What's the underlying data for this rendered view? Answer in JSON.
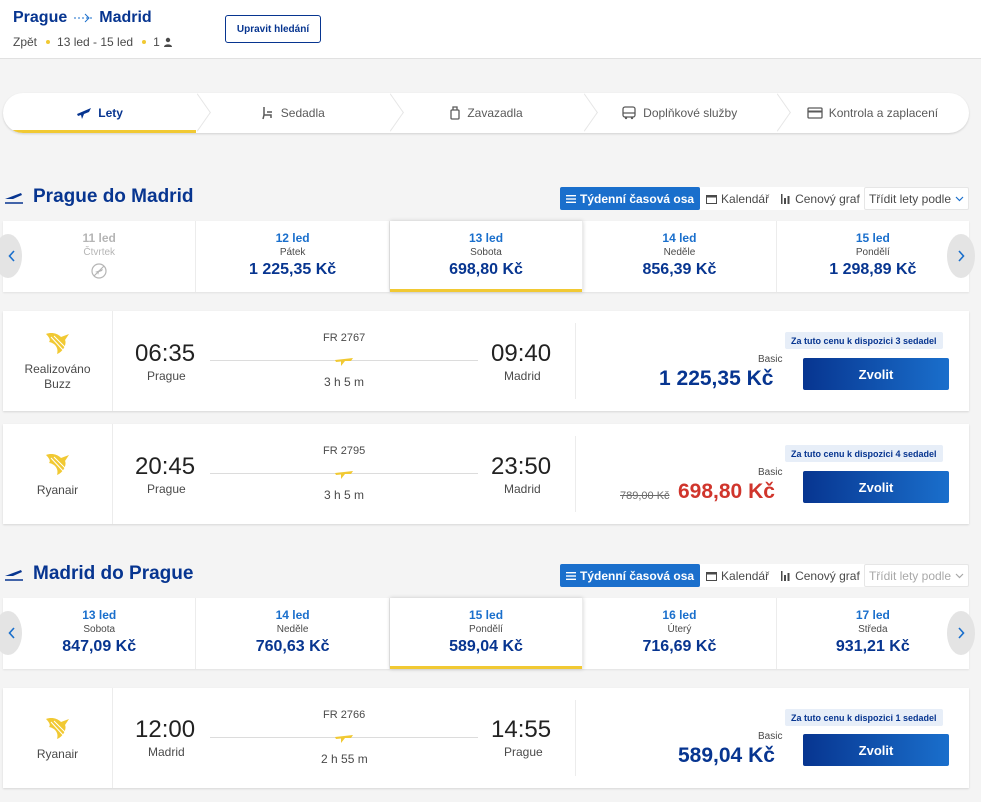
{
  "header": {
    "origin": "Prague",
    "destination": "Madrid",
    "trip_type": "Zpět",
    "dates": "13 led - 15 led",
    "passengers": "1",
    "edit_label": "Upravit hledání"
  },
  "steps": [
    {
      "label": "Lety",
      "icon": "plane-icon"
    },
    {
      "label": "Sedadla",
      "icon": "seat-icon"
    },
    {
      "label": "Zavazadla",
      "icon": "luggage-icon"
    },
    {
      "label": "Doplňkové služby",
      "icon": "bus-icon"
    },
    {
      "label": "Kontrola a zaplacení",
      "icon": "card-icon"
    }
  ],
  "view_tabs": {
    "timeline": "Týdenní časová osa",
    "calendar": "Kalendář",
    "price_chart": "Cenový graf",
    "sort": "Třídit lety podle"
  },
  "outbound": {
    "title": "Prague do Madrid",
    "days": [
      {
        "date": "11 led",
        "weekday": "Čtvrtek",
        "price": "",
        "disabled": true
      },
      {
        "date": "12 led",
        "weekday": "Pátek",
        "price": "1 225,35 Kč"
      },
      {
        "date": "13 led",
        "weekday": "Sobota",
        "price": "698,80 Kč",
        "selected": true
      },
      {
        "date": "14 led",
        "weekday": "Neděle",
        "price": "856,39 Kč"
      },
      {
        "date": "15 led",
        "weekday": "Pondělí",
        "price": "1 298,89 Kč"
      }
    ],
    "flights": [
      {
        "carrier": "Realizováno Buzz",
        "dep_time": "06:35",
        "dep_city": "Prague",
        "arr_time": "09:40",
        "arr_city": "Madrid",
        "flight_no": "FR 2767",
        "duration": "3 h 5 m",
        "availability": "Za tuto cenu k dispozici 3 sedadel",
        "fare": "Basic",
        "old_price": "",
        "price": "1 225,35 Kč",
        "select_label": "Zvolit"
      },
      {
        "carrier": "Ryanair",
        "dep_time": "20:45",
        "dep_city": "Prague",
        "arr_time": "23:50",
        "arr_city": "Madrid",
        "flight_no": "FR 2795",
        "duration": "3 h 5 m",
        "availability": "Za tuto cenu k dispozici 4 sedadel",
        "fare": "Basic",
        "old_price": "789,00 Kč",
        "price": "698,80 Kč",
        "select_label": "Zvolit"
      }
    ]
  },
  "inbound": {
    "title": "Madrid do Prague",
    "days": [
      {
        "date": "13 led",
        "weekday": "Sobota",
        "price": "847,09 Kč"
      },
      {
        "date": "14 led",
        "weekday": "Neděle",
        "price": "760,63 Kč"
      },
      {
        "date": "15 led",
        "weekday": "Pondělí",
        "price": "589,04 Kč",
        "selected": true
      },
      {
        "date": "16 led",
        "weekday": "Úterý",
        "price": "716,69 Kč"
      },
      {
        "date": "17 led",
        "weekday": "Středa",
        "price": "931,21 Kč"
      }
    ],
    "flights": [
      {
        "carrier": "Ryanair",
        "dep_time": "12:00",
        "dep_city": "Madrid",
        "arr_time": "14:55",
        "arr_city": "Prague",
        "flight_no": "FR 2766",
        "duration": "2 h 55 m",
        "availability": "Za tuto cenu k dispozici 1 sedadel",
        "fare": "Basic",
        "old_price": "",
        "price": "589,04 Kč",
        "select_label": "Zvolit"
      }
    ]
  },
  "colors": {
    "brand_blue": "#073590",
    "accent_blue": "#1a6fcc",
    "yellow": "#f1c933",
    "sale_red": "#d0352c"
  }
}
